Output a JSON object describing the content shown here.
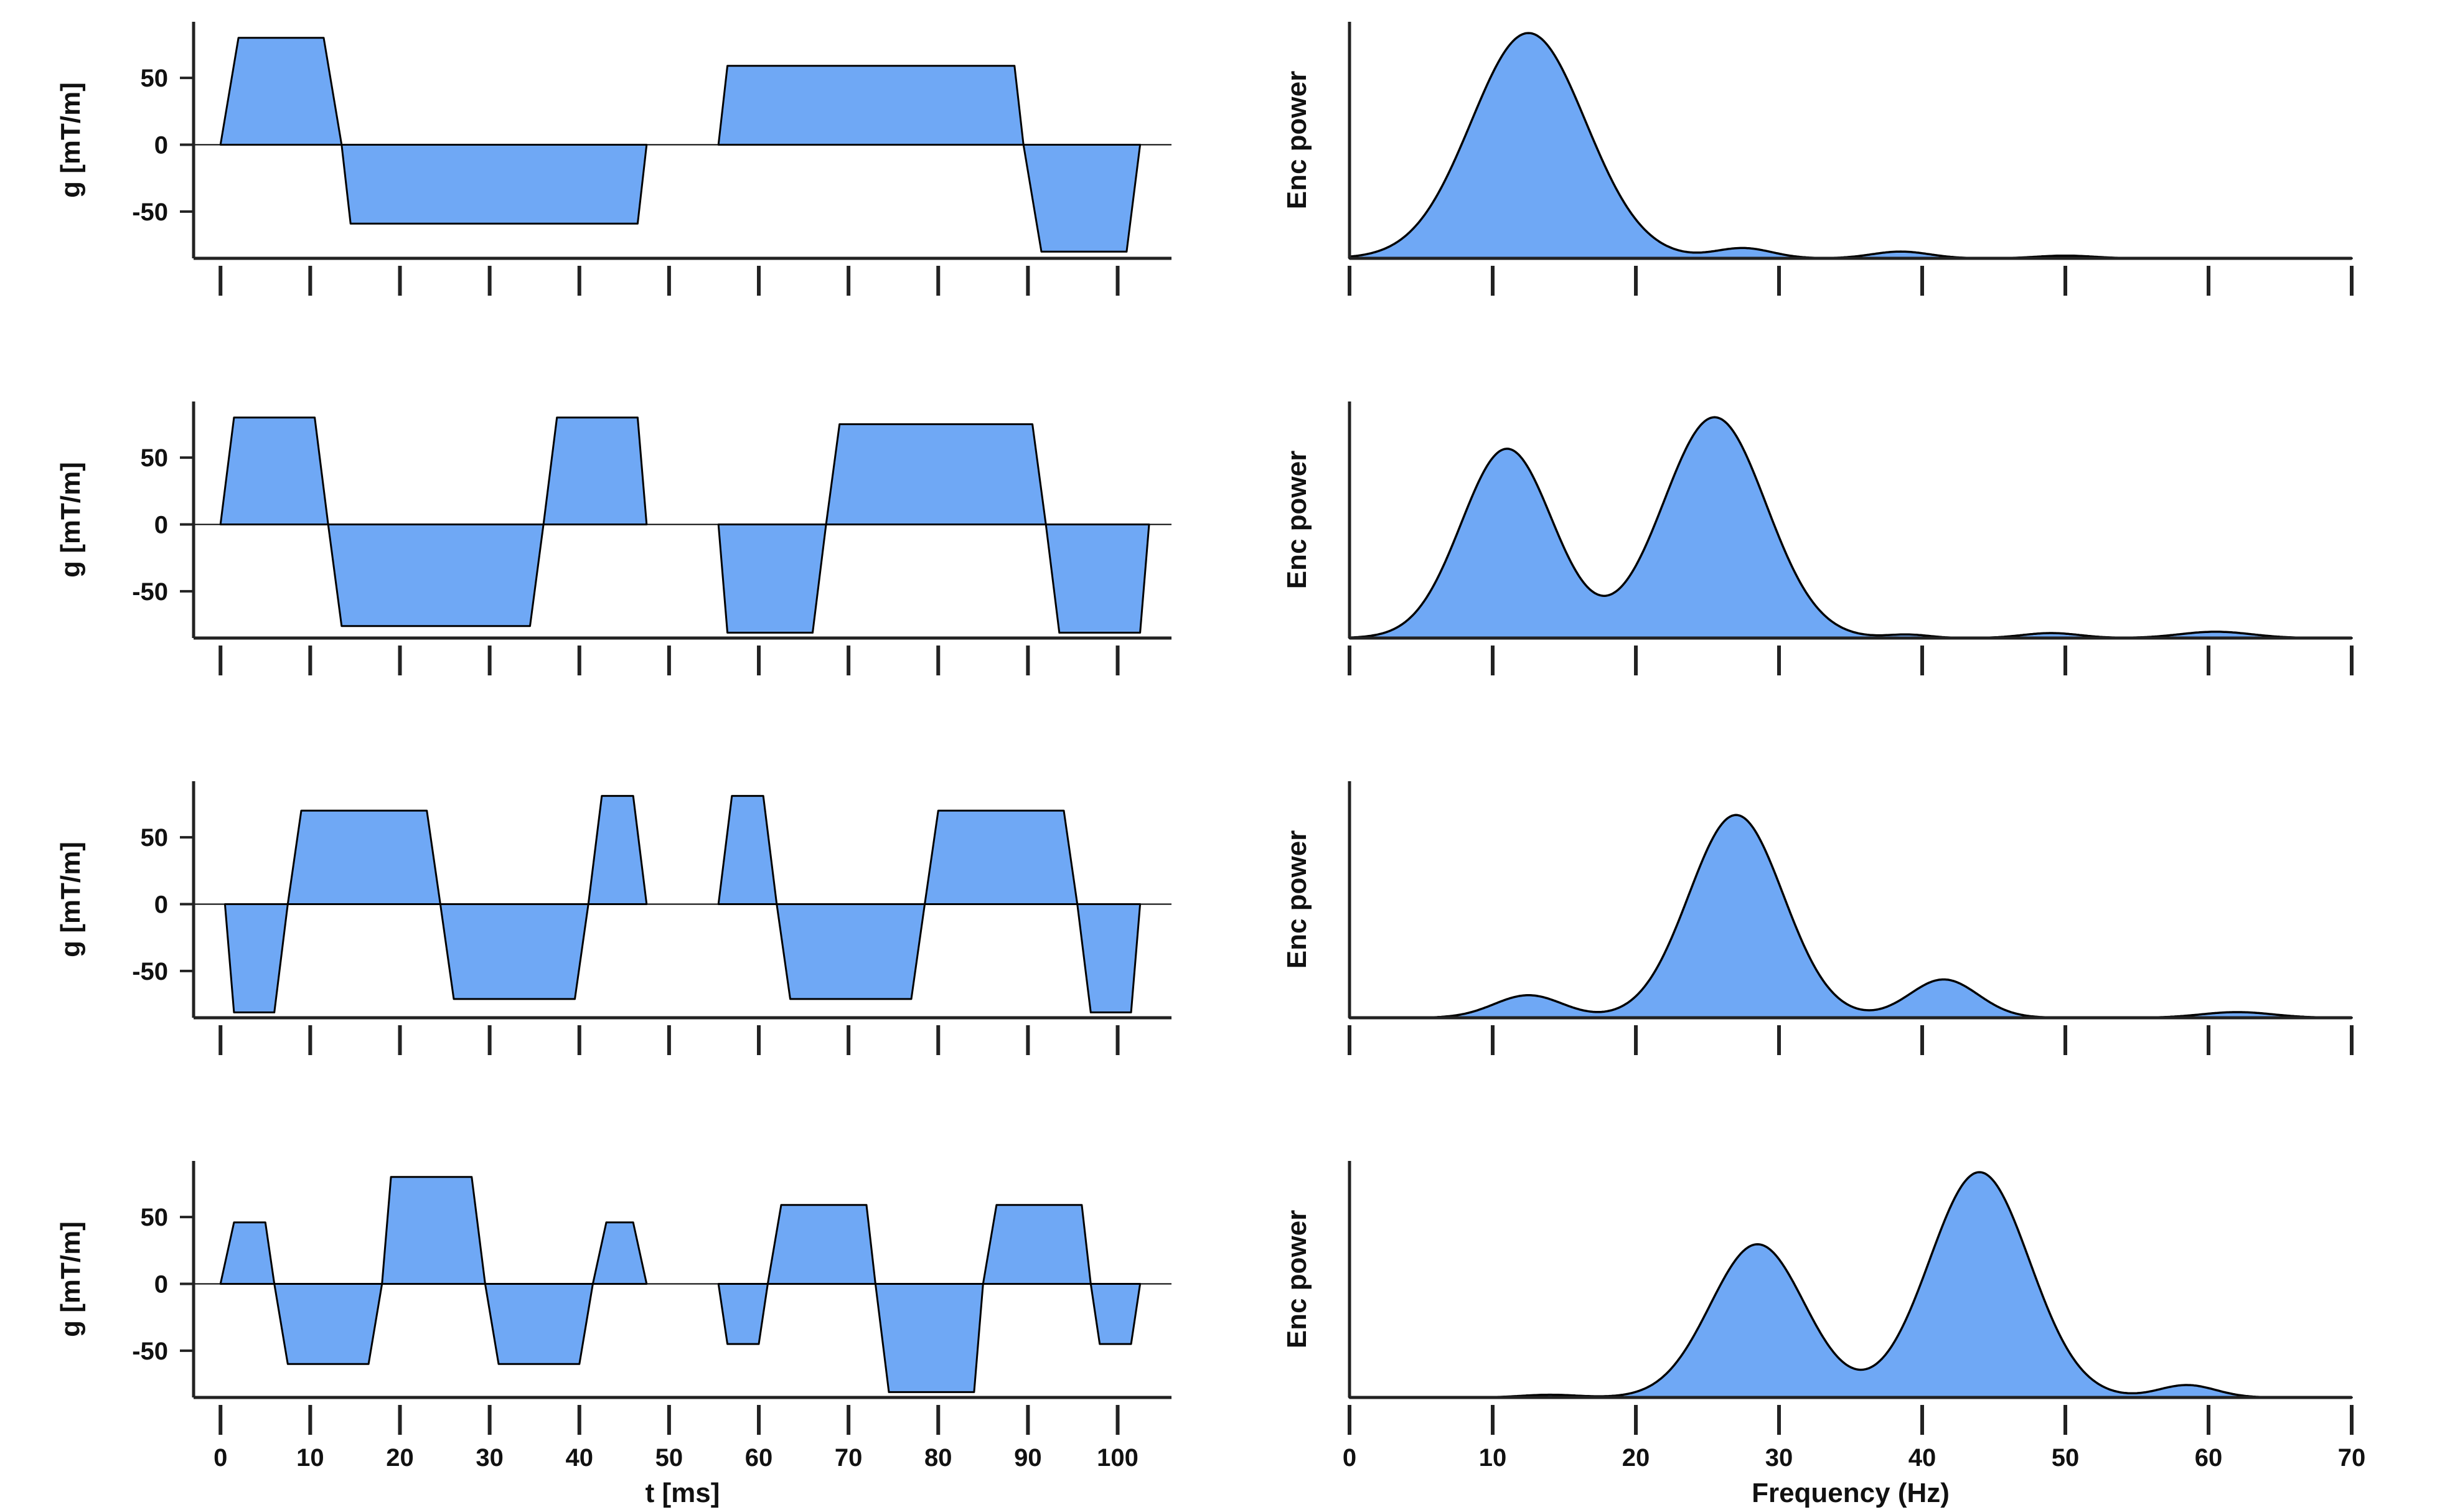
{
  "figure": {
    "fill_color": "#6fa8f5",
    "stroke_color": "#000000",
    "axis_color": "#222222"
  },
  "chart_data": [
    {
      "type": "area",
      "panel": "gradient-waveform-1",
      "xlabel": "",
      "ylabel": "g [mT/m]",
      "xlim": [
        -3,
        106
      ],
      "ylim": [
        -85,
        92
      ],
      "yticks": [
        50,
        0,
        -50
      ],
      "ytick_labels": [
        "50",
        "0",
        "-50"
      ],
      "xticks": [
        0,
        10,
        20,
        30,
        40,
        50,
        60,
        70,
        80,
        90,
        100
      ],
      "xtick_labels": [],
      "zero_line": true,
      "segments": [
        [
          [
            0,
            0
          ],
          [
            2,
            80
          ],
          [
            11.5,
            80
          ],
          [
            13.5,
            0
          ]
        ],
        [
          [
            13.5,
            0
          ],
          [
            14.5,
            -59
          ],
          [
            46.5,
            -59
          ],
          [
            47.5,
            0
          ]
        ],
        [
          [
            55.5,
            0
          ],
          [
            56.5,
            59
          ],
          [
            88.5,
            59
          ],
          [
            89.5,
            0
          ]
        ],
        [
          [
            89.5,
            0
          ],
          [
            91.5,
            -80
          ],
          [
            101,
            -80
          ],
          [
            102.5,
            0
          ]
        ]
      ]
    },
    {
      "type": "area",
      "panel": "encoding-power-1",
      "xlabel": "",
      "ylabel": "Enc power",
      "xlim": [
        0,
        70
      ],
      "ylim": [
        0,
        1.05
      ],
      "xticks": [
        0,
        10,
        20,
        30,
        40,
        50,
        60,
        70
      ],
      "xtick_labels": [],
      "peaks": [
        {
          "center": 12.5,
          "height": 1.0,
          "width": 4.0
        },
        {
          "center": 27.5,
          "height": 0.045,
          "width": 2.0
        },
        {
          "center": 38.5,
          "height": 0.03,
          "width": 2.0
        },
        {
          "center": 50,
          "height": 0.012,
          "width": 2.0
        }
      ]
    },
    {
      "type": "area",
      "panel": "gradient-waveform-2",
      "xlabel": "",
      "ylabel": "g [mT/m]",
      "xlim": [
        -3,
        106
      ],
      "ylim": [
        -85,
        92
      ],
      "yticks": [
        50,
        0,
        -50
      ],
      "ytick_labels": [
        "50",
        "0",
        "-50"
      ],
      "xticks": [
        0,
        10,
        20,
        30,
        40,
        50,
        60,
        70,
        80,
        90,
        100
      ],
      "xtick_labels": [],
      "zero_line": true,
      "segments": [
        [
          [
            0,
            0
          ],
          [
            1.5,
            80
          ],
          [
            10.5,
            80
          ],
          [
            12,
            0
          ]
        ],
        [
          [
            12,
            0
          ],
          [
            13.5,
            -76
          ],
          [
            34.5,
            -76
          ],
          [
            36,
            0
          ]
        ],
        [
          [
            36,
            0
          ],
          [
            37.5,
            80
          ],
          [
            46.5,
            80
          ],
          [
            47.5,
            0
          ]
        ],
        [
          [
            55.5,
            0
          ],
          [
            56.5,
            -81
          ],
          [
            66,
            -81
          ],
          [
            67.5,
            0
          ]
        ],
        [
          [
            67.5,
            0
          ],
          [
            69,
            75
          ],
          [
            90.5,
            75
          ],
          [
            92,
            0
          ]
        ],
        [
          [
            92,
            0
          ],
          [
            93.5,
            -81
          ],
          [
            102.5,
            -81
          ],
          [
            103.5,
            0
          ]
        ]
      ]
    },
    {
      "type": "area",
      "panel": "encoding-power-2",
      "xlabel": "",
      "ylabel": "Enc power",
      "xlim": [
        0,
        70
      ],
      "ylim": [
        0,
        1.05
      ],
      "xticks": [
        0,
        10,
        20,
        30,
        40,
        50,
        60,
        70
      ],
      "xtick_labels": [],
      "peaks": [
        {
          "center": 11,
          "height": 0.84,
          "width": 3.2
        },
        {
          "center": 25.5,
          "height": 0.98,
          "width": 3.6
        },
        {
          "center": 39,
          "height": 0.015,
          "width": 1.5
        },
        {
          "center": 49,
          "height": 0.022,
          "width": 2.0
        },
        {
          "center": 60.5,
          "height": 0.028,
          "width": 2.5
        }
      ]
    },
    {
      "type": "area",
      "panel": "gradient-waveform-3",
      "xlabel": "",
      "ylabel": "g [mT/m]",
      "xlim": [
        -3,
        106
      ],
      "ylim": [
        -85,
        92
      ],
      "yticks": [
        50,
        0,
        -50
      ],
      "ytick_labels": [
        "50",
        "0",
        "-50"
      ],
      "xticks": [
        0,
        10,
        20,
        30,
        40,
        50,
        60,
        70,
        80,
        90,
        100
      ],
      "xtick_labels": [],
      "zero_line": true,
      "segments": [
        [
          [
            0.5,
            0
          ],
          [
            1.5,
            -81
          ],
          [
            6,
            -81
          ],
          [
            7.5,
            0
          ]
        ],
        [
          [
            7.5,
            0
          ],
          [
            9,
            70
          ],
          [
            23,
            70
          ],
          [
            24.5,
            0
          ]
        ],
        [
          [
            24.5,
            0
          ],
          [
            26,
            -71
          ],
          [
            39.5,
            -71
          ],
          [
            41,
            0
          ]
        ],
        [
          [
            41,
            0
          ],
          [
            42.5,
            81
          ],
          [
            46,
            81
          ],
          [
            47.5,
            0
          ]
        ],
        [
          [
            55.5,
            0
          ],
          [
            57,
            81
          ],
          [
            60.5,
            81
          ],
          [
            62,
            0
          ]
        ],
        [
          [
            62,
            0
          ],
          [
            63.5,
            -71
          ],
          [
            77,
            -71
          ],
          [
            78.5,
            0
          ]
        ],
        [
          [
            78.5,
            0
          ],
          [
            80,
            70
          ],
          [
            94,
            70
          ],
          [
            95.5,
            0
          ]
        ],
        [
          [
            95.5,
            0
          ],
          [
            97,
            -81
          ],
          [
            101.5,
            -81
          ],
          [
            102.5,
            0
          ]
        ]
      ]
    },
    {
      "type": "area",
      "panel": "encoding-power-3",
      "xlabel": "",
      "ylabel": "Enc power",
      "xlim": [
        0,
        70
      ],
      "ylim": [
        0,
        1.05
      ],
      "xticks": [
        0,
        10,
        20,
        30,
        40,
        50,
        60,
        70
      ],
      "xtick_labels": [],
      "peaks": [
        {
          "center": 12.5,
          "height": 0.1,
          "width": 2.4
        },
        {
          "center": 27,
          "height": 0.9,
          "width": 3.3
        },
        {
          "center": 41.5,
          "height": 0.17,
          "width": 2.4
        },
        {
          "center": 62,
          "height": 0.025,
          "width": 2.5
        }
      ]
    },
    {
      "type": "area",
      "panel": "gradient-waveform-4",
      "xlabel": "t [ms]",
      "ylabel": "g [mT/m]",
      "xlim": [
        -3,
        106
      ],
      "ylim": [
        -85,
        92
      ],
      "yticks": [
        50,
        0,
        -50
      ],
      "ytick_labels": [
        "50",
        "0",
        "-50"
      ],
      "xticks": [
        0,
        10,
        20,
        30,
        40,
        50,
        60,
        70,
        80,
        90,
        100
      ],
      "xtick_labels": [
        "0",
        "10",
        "20",
        "30",
        "40",
        "50",
        "60",
        "70",
        "80",
        "90",
        "100"
      ],
      "zero_line": true,
      "segments": [
        [
          [
            0,
            0
          ],
          [
            1.5,
            46
          ],
          [
            5,
            46
          ],
          [
            6,
            0
          ]
        ],
        [
          [
            6,
            0
          ],
          [
            7.5,
            -60
          ],
          [
            16.5,
            -60
          ],
          [
            18,
            0
          ]
        ],
        [
          [
            18,
            0
          ],
          [
            19,
            80
          ],
          [
            28,
            80
          ],
          [
            29.5,
            0
          ]
        ],
        [
          [
            29.5,
            0
          ],
          [
            31,
            -60
          ],
          [
            40,
            -60
          ],
          [
            41.5,
            0
          ]
        ],
        [
          [
            41.5,
            0
          ],
          [
            43,
            46
          ],
          [
            46,
            46
          ],
          [
            47.5,
            0
          ]
        ],
        [
          [
            55.5,
            0
          ],
          [
            56.5,
            -45
          ],
          [
            60,
            -45
          ],
          [
            61,
            0
          ]
        ],
        [
          [
            61,
            0
          ],
          [
            62.5,
            59
          ],
          [
            72,
            59
          ],
          [
            73,
            0
          ]
        ],
        [
          [
            73,
            0
          ],
          [
            74.5,
            -81
          ],
          [
            84,
            -81
          ],
          [
            85,
            0
          ]
        ],
        [
          [
            85,
            0
          ],
          [
            86.5,
            59
          ],
          [
            96,
            59
          ],
          [
            97,
            0
          ]
        ],
        [
          [
            97,
            0
          ],
          [
            98,
            -45
          ],
          [
            101.5,
            -45
          ],
          [
            102.5,
            0
          ]
        ]
      ]
    },
    {
      "type": "area",
      "panel": "encoding-power-4",
      "xlabel": "Frequency (Hz)",
      "ylabel": "Enc power",
      "xlim": [
        0,
        70
      ],
      "ylim": [
        0,
        1.05
      ],
      "xticks": [
        0,
        10,
        20,
        30,
        40,
        50,
        60,
        70
      ],
      "xtick_labels": [
        "0",
        "10",
        "20",
        "30",
        "40",
        "50",
        "60",
        "70"
      ],
      "peaks": [
        {
          "center": 14,
          "height": 0.012,
          "width": 2.0
        },
        {
          "center": 28.5,
          "height": 0.68,
          "width": 3.3
        },
        {
          "center": 44,
          "height": 1.0,
          "width": 3.5
        },
        {
          "center": 58.5,
          "height": 0.055,
          "width": 2.0
        }
      ]
    }
  ]
}
